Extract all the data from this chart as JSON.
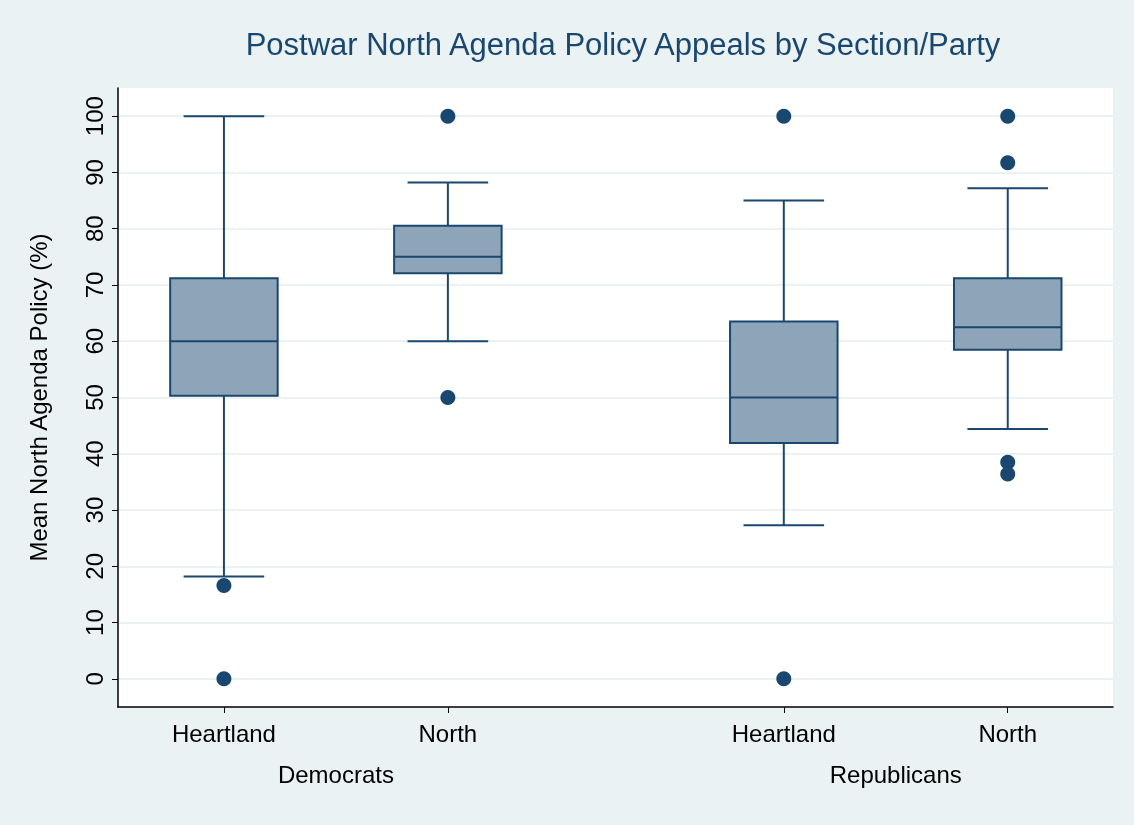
{
  "chart_data": {
    "type": "box",
    "title": "Postwar North Agenda Policy Appeals by Section/Party",
    "ylabel": "Mean North Agenda Policy (%)",
    "categories": [
      "Heartland",
      "North",
      "Heartland",
      "North"
    ],
    "color": "#8ea4b9",
    "boxes": [
      {
        "low": 18.2,
        "q1": 50.3,
        "median": 60,
        "q3": 71.2,
        "high": 100,
        "outliers": [
          16.6,
          0
        ]
      },
      {
        "low": 60,
        "q1": 72.1,
        "median": 75,
        "q3": 80.5,
        "high": 88.2,
        "outliers": [
          100,
          50
        ]
      },
      {
        "low": 27.3,
        "q1": 41.9,
        "median": 50,
        "q3": 63.5,
        "high": 85,
        "outliers": [
          100,
          0
        ]
      },
      {
        "low": 44.4,
        "q1": 58.5,
        "median": 62.5,
        "q3": 71.2,
        "high": 87.2,
        "outliers": [
          100,
          91.7,
          38.5,
          36.4
        ]
      }
    ],
    "annotations": [
      "Democrats",
      "Republicans"
    ],
    "ylim": [
      -5,
      105
    ],
    "yticks": [
      0,
      10,
      20,
      30,
      40,
      50,
      60,
      70,
      80,
      90,
      100
    ],
    "grid": "y",
    "marker": "circle"
  }
}
